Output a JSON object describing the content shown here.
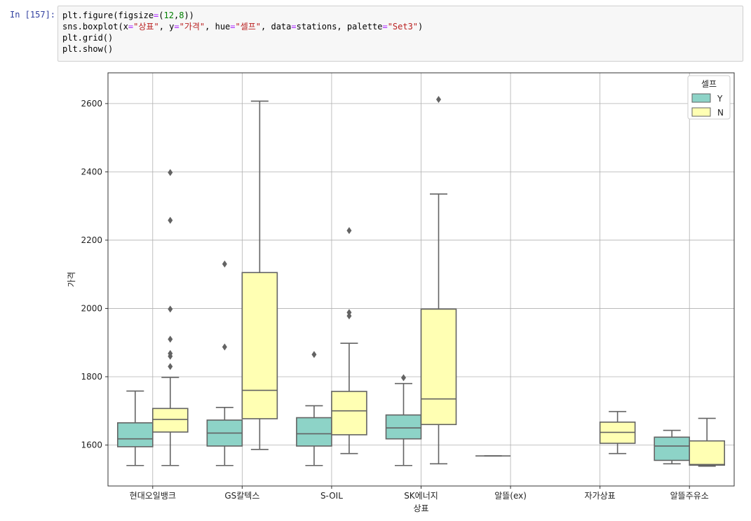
{
  "cell": {
    "prompt": "In [157]:",
    "code_lines": [
      [
        {
          "t": "plt.figure(figsize",
          "c": ""
        },
        {
          "t": "=",
          "c": "op"
        },
        {
          "t": "(",
          "c": ""
        },
        {
          "t": "12",
          "c": "num"
        },
        {
          "t": ",",
          "c": ""
        },
        {
          "t": "8",
          "c": "num"
        },
        {
          "t": "))",
          "c": ""
        }
      ],
      [
        {
          "t": "sns.boxplot(x",
          "c": ""
        },
        {
          "t": "=",
          "c": "op"
        },
        {
          "t": "\"상표\"",
          "c": "str"
        },
        {
          "t": ", y",
          "c": ""
        },
        {
          "t": "=",
          "c": "op"
        },
        {
          "t": "\"가격\"",
          "c": "str"
        },
        {
          "t": ", hue",
          "c": ""
        },
        {
          "t": "=",
          "c": "op"
        },
        {
          "t": "\"셀프\"",
          "c": "str"
        },
        {
          "t": ", data",
          "c": ""
        },
        {
          "t": "=",
          "c": "op"
        },
        {
          "t": "stations, palette",
          "c": ""
        },
        {
          "t": "=",
          "c": "op"
        },
        {
          "t": "\"Set3\"",
          "c": "str"
        },
        {
          "t": ")",
          "c": ""
        }
      ],
      [
        {
          "t": "plt.grid()",
          "c": ""
        }
      ],
      [
        {
          "t": "plt.show()",
          "c": ""
        }
      ]
    ]
  },
  "chart_data": {
    "type": "box",
    "xlabel": "상표",
    "ylabel": "가격",
    "ylim": [
      1480,
      2690
    ],
    "yticks": [
      1600,
      1800,
      2000,
      2200,
      2400,
      2600
    ],
    "grid": true,
    "categories": [
      "현대오일뱅크",
      "GS칼텍스",
      "S-OIL",
      "SK에너지",
      "알뜰(ex)",
      "자가상표",
      "알뜰주유소"
    ],
    "legend": {
      "title": "셀프",
      "position": "top-right",
      "entries": [
        "Y",
        "N"
      ]
    },
    "colors": {
      "Y": "#8dd3c7",
      "N": "#ffffb3",
      "line": "#636363"
    },
    "series": [
      {
        "name": "Y",
        "boxes": [
          {
            "whislo": 1540,
            "q1": 1595,
            "med": 1618,
            "q3": 1665,
            "whishi": 1758,
            "fliers": []
          },
          {
            "whislo": 1540,
            "q1": 1597,
            "med": 1635,
            "q3": 1673,
            "whishi": 1710,
            "fliers": [
              2130,
              1887
            ]
          },
          {
            "whislo": 1540,
            "q1": 1597,
            "med": 1633,
            "q3": 1680,
            "whishi": 1715,
            "fliers": [
              1865
            ]
          },
          {
            "whislo": 1540,
            "q1": 1618,
            "med": 1650,
            "q3": 1688,
            "whishi": 1780,
            "fliers": [
              1797
            ]
          },
          {
            "whislo": 1568,
            "q1": 1568,
            "med": 1568,
            "q3": 1568,
            "whishi": 1568,
            "fliers": []
          },
          null,
          {
            "whislo": 1545,
            "q1": 1555,
            "med": 1597,
            "q3": 1623,
            "whishi": 1643,
            "fliers": []
          }
        ]
      },
      {
        "name": "N",
        "boxes": [
          {
            "whislo": 1540,
            "q1": 1638,
            "med": 1675,
            "q3": 1707,
            "whishi": 1798,
            "fliers": [
              2398,
              2258,
              1998,
              1910,
              1868,
              1860,
              1830
            ]
          },
          {
            "whislo": 1587,
            "q1": 1677,
            "med": 1760,
            "q3": 2105,
            "whishi": 2607,
            "fliers": []
          },
          {
            "whislo": 1575,
            "q1": 1630,
            "med": 1700,
            "q3": 1757,
            "whishi": 1898,
            "fliers": [
              2228,
              1988,
              1978
            ]
          },
          {
            "whislo": 1545,
            "q1": 1660,
            "med": 1735,
            "q3": 1998,
            "whishi": 2335,
            "fliers": [
              2612
            ]
          },
          null,
          {
            "whislo": 1575,
            "q1": 1605,
            "med": 1637,
            "q3": 1667,
            "whishi": 1698,
            "fliers": []
          },
          {
            "whislo": 1538,
            "q1": 1541,
            "med": 1543,
            "q3": 1612,
            "whishi": 1678,
            "fliers": []
          }
        ]
      }
    ]
  }
}
